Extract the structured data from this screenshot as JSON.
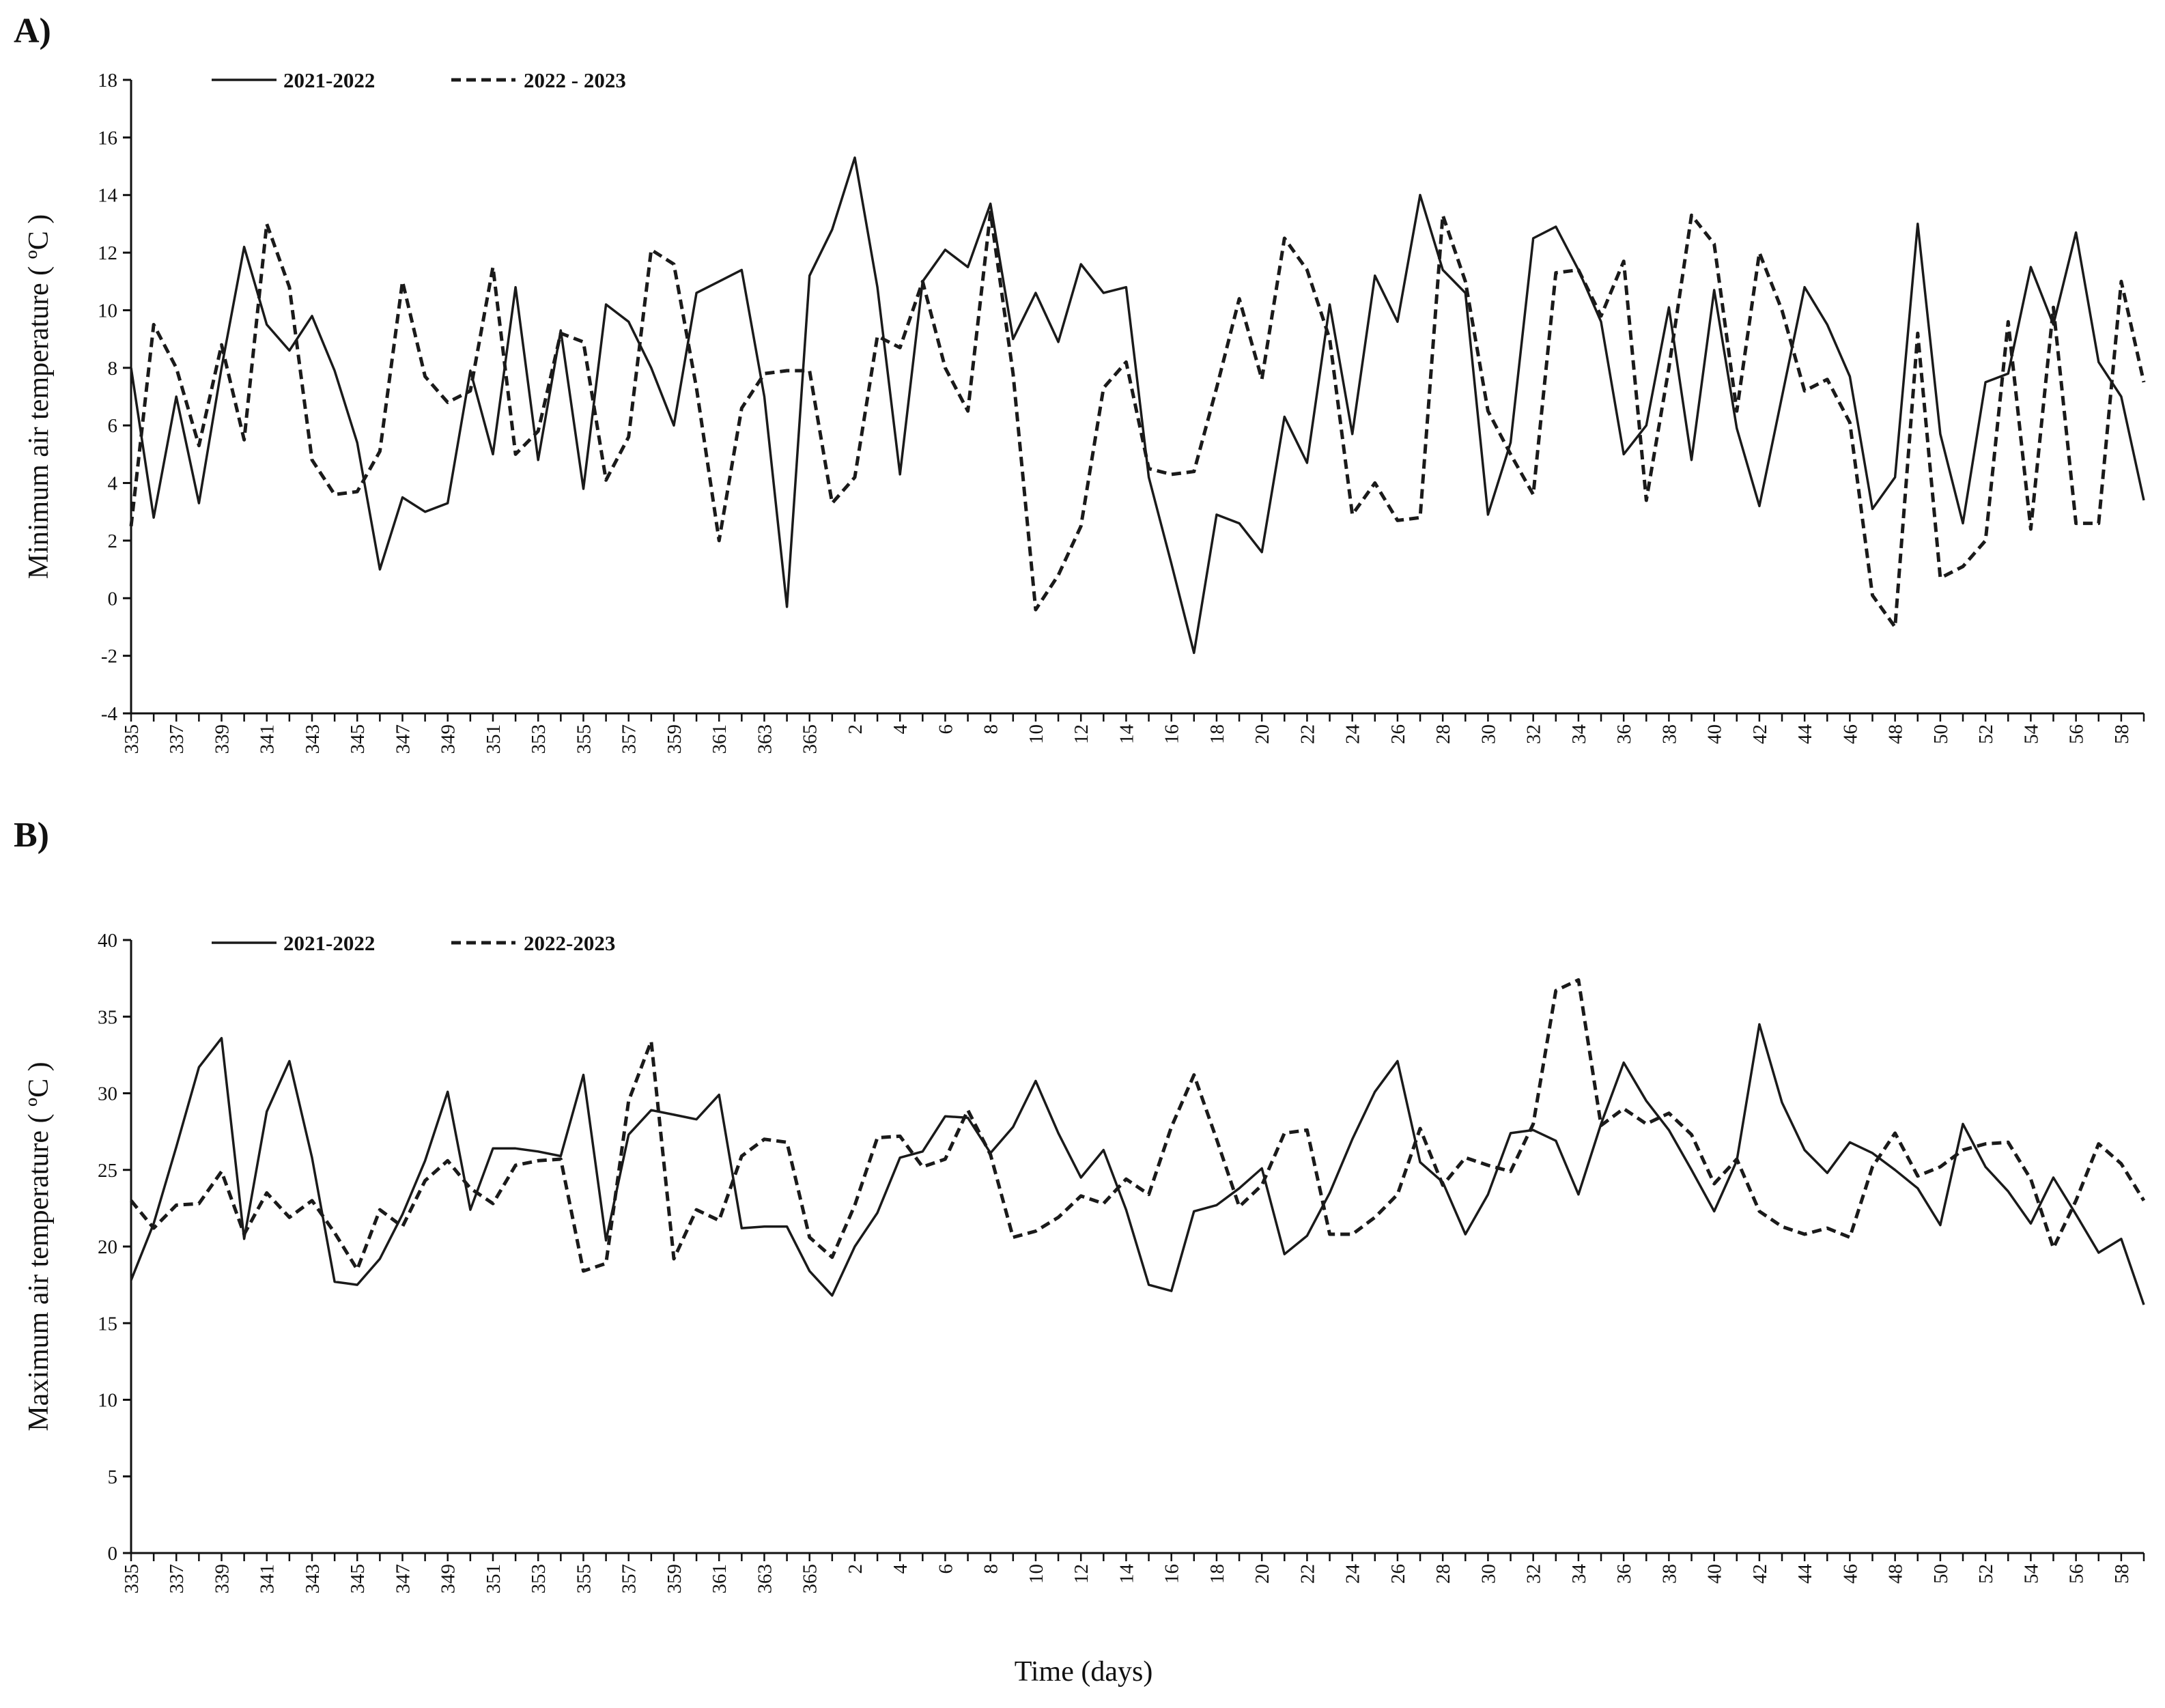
{
  "chart_data": [
    {
      "type": "line",
      "panel_label": "A)",
      "ylabel": "Minimum air temperature ( ºC )",
      "categories": [
        "335",
        null,
        "337",
        null,
        "339",
        null,
        "341",
        null,
        "343",
        null,
        "345",
        null,
        "347",
        null,
        "349",
        null,
        "351",
        null,
        "353",
        null,
        "355",
        null,
        "357",
        null,
        "359",
        null,
        "361",
        null,
        "363",
        null,
        "365",
        null,
        "2",
        null,
        "4",
        null,
        "6",
        null,
        "8",
        null,
        "10",
        null,
        "12",
        null,
        "14",
        null,
        "16",
        null,
        "18",
        null,
        "20",
        null,
        "22",
        null,
        "24",
        null,
        "26",
        null,
        "28",
        null,
        "30",
        null,
        "32",
        null,
        "34",
        null,
        "36",
        null,
        "38",
        null,
        "40",
        null,
        "42",
        null,
        "44",
        null,
        "46",
        null,
        "48",
        null,
        "50",
        null,
        "52",
        null,
        "54",
        null,
        "56",
        null,
        "58",
        null
      ],
      "ylim": [
        -4,
        18
      ],
      "yticks": [
        -4,
        -2,
        0,
        2,
        4,
        6,
        8,
        10,
        12,
        14,
        16,
        18
      ],
      "series": [
        {
          "name": "2021-2022",
          "color": "#1a1a1a",
          "style": "solid",
          "values": [
            8.0,
            2.8,
            7.0,
            3.3,
            8.0,
            12.2,
            9.5,
            8.6,
            9.8,
            7.9,
            5.4,
            1.0,
            3.5,
            3.0,
            3.3,
            7.9,
            5.0,
            10.8,
            4.8,
            9.3,
            3.8,
            10.2,
            9.6,
            8.0,
            6.0,
            10.6,
            11.0,
            11.4,
            7.0,
            -0.3,
            11.2,
            12.8,
            15.3,
            10.8,
            4.3,
            11.0,
            12.1,
            11.5,
            13.7,
            9.0,
            10.6,
            8.9,
            11.6,
            10.6,
            10.8,
            4.2,
            1.2,
            -1.9,
            2.9,
            2.6,
            1.6,
            6.3,
            4.7,
            10.2,
            5.7,
            11.2,
            9.6,
            14.0,
            11.4,
            10.6,
            2.9,
            5.4,
            12.5,
            12.9,
            11.4,
            9.6,
            5.0,
            6.0,
            10.1,
            4.8,
            10.7,
            5.9,
            3.2,
            7.0,
            10.8,
            9.5,
            7.7,
            3.1,
            4.2,
            13.0,
            5.7,
            2.6,
            7.5,
            7.8,
            11.5,
            9.5,
            12.7,
            8.2,
            7.0,
            3.4
          ]
        },
        {
          "name": "2022 - 2023",
          "color": "#1a1a1a",
          "style": "dashed",
          "values": [
            2.5,
            9.5,
            8.0,
            5.3,
            8.8,
            5.5,
            13.0,
            10.8,
            4.8,
            3.6,
            3.7,
            5.1,
            11.0,
            7.7,
            6.8,
            7.2,
            11.5,
            5.0,
            5.8,
            9.2,
            8.9,
            4.1,
            5.6,
            12.1,
            11.6,
            7.3,
            2.0,
            6.6,
            7.8,
            7.9,
            7.9,
            3.3,
            4.2,
            9.1,
            8.7,
            11.0,
            8.0,
            6.5,
            13.4,
            7.8,
            -0.4,
            0.8,
            2.5,
            7.3,
            8.2,
            4.5,
            4.3,
            4.4,
            7.3,
            10.4,
            7.6,
            12.5,
            11.4,
            9.0,
            2.9,
            4.0,
            2.7,
            2.8,
            13.3,
            11.0,
            6.5,
            5.0,
            3.6,
            11.3,
            11.4,
            9.8,
            11.7,
            3.4,
            8.0,
            13.3,
            12.3,
            6.5,
            12.0,
            10.0,
            7.2,
            7.6,
            6.1,
            0.1,
            -1.0,
            9.2,
            0.7,
            1.1,
            2.0,
            9.6,
            2.4,
            10.1,
            2.6,
            2.6,
            11.0,
            7.5
          ]
        }
      ]
    },
    {
      "type": "line",
      "panel_label": "B)",
      "ylabel": "Maximum air temperature ( ºC )",
      "xlabel": "Time (days)",
      "categories": [
        "335",
        null,
        "337",
        null,
        "339",
        null,
        "341",
        null,
        "343",
        null,
        "345",
        null,
        "347",
        null,
        "349",
        null,
        "351",
        null,
        "353",
        null,
        "355",
        null,
        "357",
        null,
        "359",
        null,
        "361",
        null,
        "363",
        null,
        "365",
        null,
        "2",
        null,
        "4",
        null,
        "6",
        null,
        "8",
        null,
        "10",
        null,
        "12",
        null,
        "14",
        null,
        "16",
        null,
        "18",
        null,
        "20",
        null,
        "22",
        null,
        "24",
        null,
        "26",
        null,
        "28",
        null,
        "30",
        null,
        "32",
        null,
        "34",
        null,
        "36",
        null,
        "38",
        null,
        "40",
        null,
        "42",
        null,
        "44",
        null,
        "46",
        null,
        "48",
        null,
        "50",
        null,
        "52",
        null,
        "54",
        null,
        "56",
        null,
        "58",
        null
      ],
      "ylim": [
        0,
        40
      ],
      "yticks": [
        0,
        5,
        10,
        15,
        20,
        25,
        30,
        35,
        40
      ],
      "series": [
        {
          "name": "2021-2022",
          "color": "#1a1a1a",
          "style": "solid",
          "values": [
            17.8,
            21.5,
            26.5,
            31.7,
            33.6,
            20.5,
            28.8,
            32.1,
            25.8,
            17.7,
            17.5,
            19.2,
            22.1,
            25.6,
            30.1,
            22.4,
            26.4,
            26.4,
            26.2,
            25.9,
            31.2,
            20.4,
            27.3,
            28.9,
            28.6,
            28.3,
            29.9,
            21.2,
            21.3,
            21.3,
            18.4,
            16.8,
            20.0,
            22.2,
            25.8,
            26.2,
            28.5,
            28.4,
            26.1,
            27.8,
            30.8,
            27.4,
            24.5,
            26.3,
            22.4,
            17.5,
            17.1,
            22.3,
            22.7,
            23.8,
            25.1,
            19.5,
            20.7,
            23.5,
            27.0,
            30.1,
            32.1,
            25.5,
            24.2,
            20.8,
            23.4,
            27.4,
            27.6,
            26.9,
            23.4,
            28.0,
            32.0,
            29.5,
            27.6,
            25.0,
            22.3,
            25.6,
            34.5,
            29.4,
            26.3,
            24.8,
            26.8,
            26.1,
            25.0,
            23.8,
            21.4,
            28.0,
            25.2,
            23.6,
            21.5,
            24.5,
            22.1,
            19.6,
            20.5,
            16.2
          ]
        },
        {
          "name": "2022-2023",
          "color": "#1a1a1a",
          "style": "dashed",
          "values": [
            23.0,
            21.2,
            22.7,
            22.8,
            24.9,
            20.8,
            23.5,
            21.9,
            23.0,
            20.9,
            18.5,
            22.4,
            21.3,
            24.3,
            25.6,
            23.8,
            22.8,
            25.3,
            25.6,
            25.7,
            18.4,
            18.9,
            29.5,
            33.4,
            19.2,
            22.4,
            21.7,
            25.9,
            27.0,
            26.8,
            20.6,
            19.3,
            22.7,
            27.1,
            27.2,
            25.2,
            25.7,
            28.9,
            26.0,
            20.6,
            21.0,
            21.9,
            23.3,
            22.8,
            24.4,
            23.4,
            27.8,
            31.2,
            27.0,
            22.6,
            24.0,
            27.4,
            27.6,
            20.8,
            20.8,
            21.9,
            23.4,
            27.7,
            24.0,
            25.8,
            25.3,
            24.9,
            28.0,
            36.7,
            37.4,
            27.9,
            29.0,
            28.0,
            28.7,
            27.3,
            24.1,
            25.7,
            22.3,
            21.3,
            20.8,
            21.2,
            20.6,
            25.2,
            27.4,
            24.6,
            25.2,
            26.3,
            26.7,
            26.8,
            24.4,
            19.9,
            23.0,
            26.7,
            25.4,
            23.0
          ]
        }
      ]
    }
  ]
}
